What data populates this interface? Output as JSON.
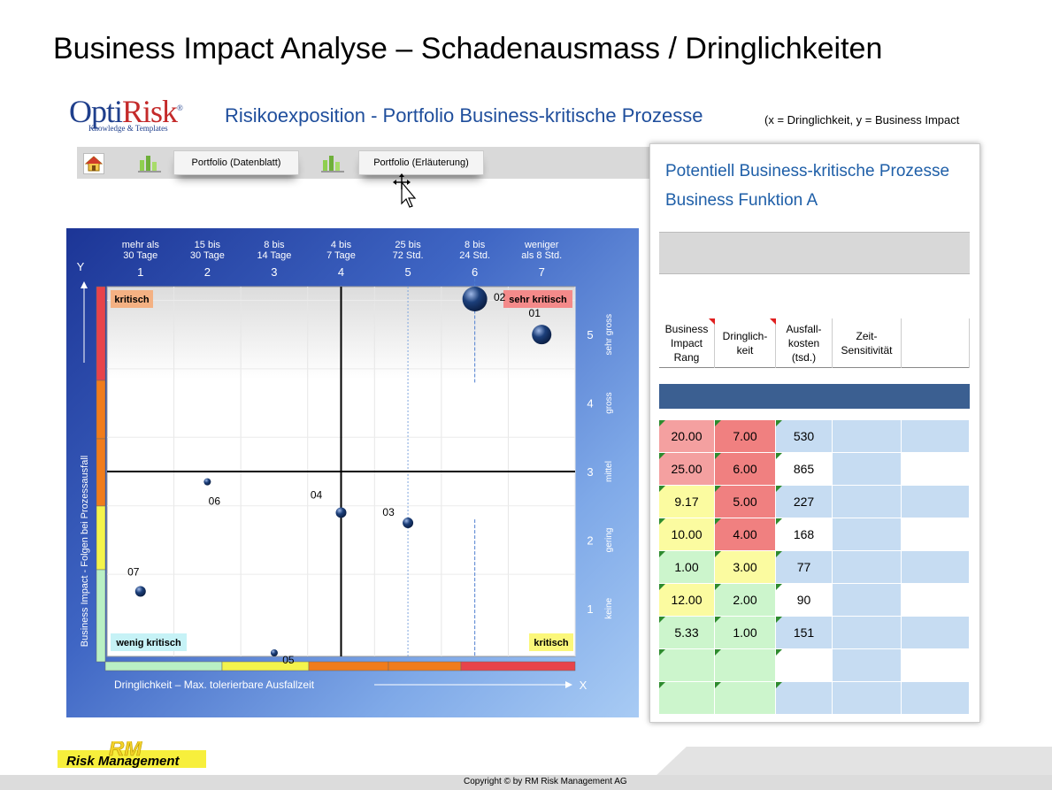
{
  "slide_title": "Business Impact Analyse – Schadenausmass / Dringlichkeiten",
  "logo": {
    "brand_a": "Opti",
    "brand_b": "Risk",
    "reg": "®",
    "sub": "Knowledge & Templates"
  },
  "panel_title": "Risikoexposition - Portfolio Business-kritische Prozesse",
  "axis_note": "(x = Dringlichkeit,   y = Business Impact",
  "toolbar": {
    "btn_datenblatt": "Portfolio (Datenblatt)",
    "btn_erlaeuterung": "Portfolio (Erläuterung)"
  },
  "chart": {
    "x_header": [
      {
        "l1": "mehr als",
        "l2": "30 Tage",
        "n": "1"
      },
      {
        "l1": "15 bis",
        "l2": "30 Tage",
        "n": "2"
      },
      {
        "l1": "8 bis",
        "l2": "14 Tage",
        "n": "3"
      },
      {
        "l1": "4 bis",
        "l2": "7 Tage",
        "n": "4"
      },
      {
        "l1": "25 bis",
        "l2": "72 Std.",
        "n": "5"
      },
      {
        "l1": "8 bis",
        "l2": "24 Std.",
        "n": "6"
      },
      {
        "l1": "weniger",
        "l2": "als 8 Std.",
        "n": "7"
      }
    ],
    "y_header": [
      {
        "n": "5",
        "label": "sehr gross"
      },
      {
        "n": "4",
        "label": "gross"
      },
      {
        "n": "3",
        "label": "mittel"
      },
      {
        "n": "2",
        "label": "gering"
      },
      {
        "n": "1",
        "label": "keine"
      }
    ],
    "y_axis_letter": "Y",
    "x_axis_letter": "X",
    "y_axis_label": "Business Impact  -  Folgen bei Prozessausfall",
    "x_axis_label": "Dringlichkeit   –  Max. tolerierbare Ausfallzeit",
    "quadrant_labels": {
      "top_left": "kritisch",
      "top_right": "sehr kritisch",
      "bottom_left": "wenig kritisch",
      "bottom_right": "kritisch"
    },
    "colors": {
      "red": "#e8434a",
      "orange": "#f07c1c",
      "yellow": "#f4f44c",
      "green": "#b9f0c4",
      "navy_bubble": "#1c3f7a"
    }
  },
  "chart_data": {
    "type": "scatter",
    "xlim": [
      0.5,
      7.5
    ],
    "ylim": [
      0.3,
      5.7
    ],
    "points": [
      {
        "label": "01",
        "x": 7.0,
        "y": 5.0,
        "size": "large"
      },
      {
        "label": "02",
        "x": 6.0,
        "y": 5.9,
        "size": "xlarge"
      },
      {
        "label": "03",
        "x": 5.0,
        "y": 2.25,
        "size": "medium"
      },
      {
        "label": "04",
        "x": 4.0,
        "y": 2.4,
        "size": "medium"
      },
      {
        "label": "05",
        "x": 3.0,
        "y": 0.3,
        "size": "small"
      },
      {
        "label": "06",
        "x": 2.0,
        "y": 2.85,
        "size": "small"
      },
      {
        "label": "07",
        "x": 1.0,
        "y": 1.25,
        "size": "medium"
      }
    ],
    "xlabel": "Dringlichkeit   –  Max. tolerierbare Ausfallzeit",
    "ylabel": "Business Impact  -  Folgen bei Prozessausfall"
  },
  "table": {
    "title1": "Potentiell Business-kritische Prozesse",
    "title2": "Business Funktion A",
    "headers": [
      "Business\nImpact\nRang",
      "Dringlich-\nkeit",
      "Ausfall-\nkosten\n(tsd.)",
      "Zeit-\nSensitivität",
      ""
    ],
    "rows": [
      {
        "rang": "20.00",
        "dring": "7.00",
        "kosten": "530",
        "rang_c": "#f4a0a0",
        "dring_c": "#f08080"
      },
      {
        "rang": "25.00",
        "dring": "6.00",
        "kosten": "865",
        "rang_c": "#f4a0a0",
        "dring_c": "#f08080"
      },
      {
        "rang": "9.17",
        "dring": "5.00",
        "kosten": "227",
        "rang_c": "#fbfba0",
        "dring_c": "#f08080"
      },
      {
        "rang": "10.00",
        "dring": "4.00",
        "kosten": "168",
        "rang_c": "#fbfba0",
        "dring_c": "#f08080"
      },
      {
        "rang": "1.00",
        "dring": "3.00",
        "kosten": "77",
        "rang_c": "#ccf5cc",
        "dring_c": "#fbfba0"
      },
      {
        "rang": "12.00",
        "dring": "2.00",
        "kosten": "90",
        "rang_c": "#fbfba0",
        "dring_c": "#ccf5cc"
      },
      {
        "rang": "5.33",
        "dring": "1.00",
        "kosten": "151",
        "rang_c": "#ccf5cc",
        "dring_c": "#ccf5cc"
      },
      {
        "rang": "",
        "dring": "",
        "kosten": "",
        "rang_c": "#ccf5cc",
        "dring_c": "#ccf5cc"
      },
      {
        "rang": "",
        "dring": "",
        "kosten": "",
        "rang_c": "#ccf5cc",
        "dring_c": "#ccf5cc"
      }
    ]
  },
  "footer": {
    "rm_logo": "Risk Management",
    "copyright": "Copyright ©  by RM Risk Management AG"
  }
}
